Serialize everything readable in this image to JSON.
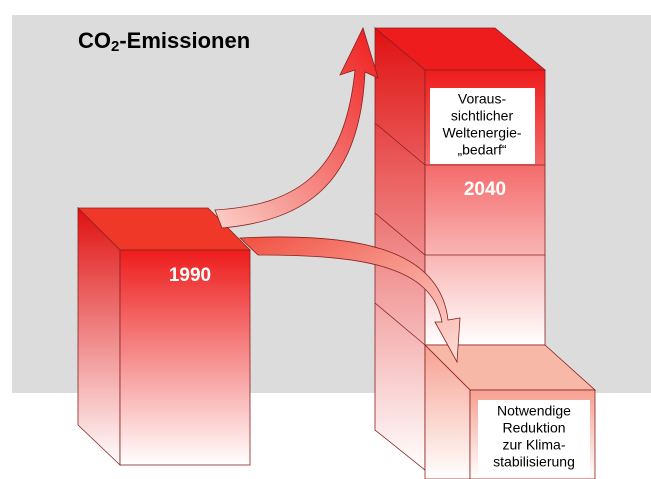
{
  "title": {
    "main": "CO",
    "sub": "2",
    "rest": "-Emissionen"
  },
  "left_block": {
    "label": "1990"
  },
  "right_block": {
    "label": "2040"
  },
  "demand_note": {
    "lines": [
      "Voraus-",
      "sichtlicher",
      "Weltenergie-",
      "„bedarf“"
    ]
  },
  "reduction_note": {
    "lines": [
      "Notwendige",
      "Reduktion",
      "zur Klima-",
      "stabilisierung"
    ]
  }
}
